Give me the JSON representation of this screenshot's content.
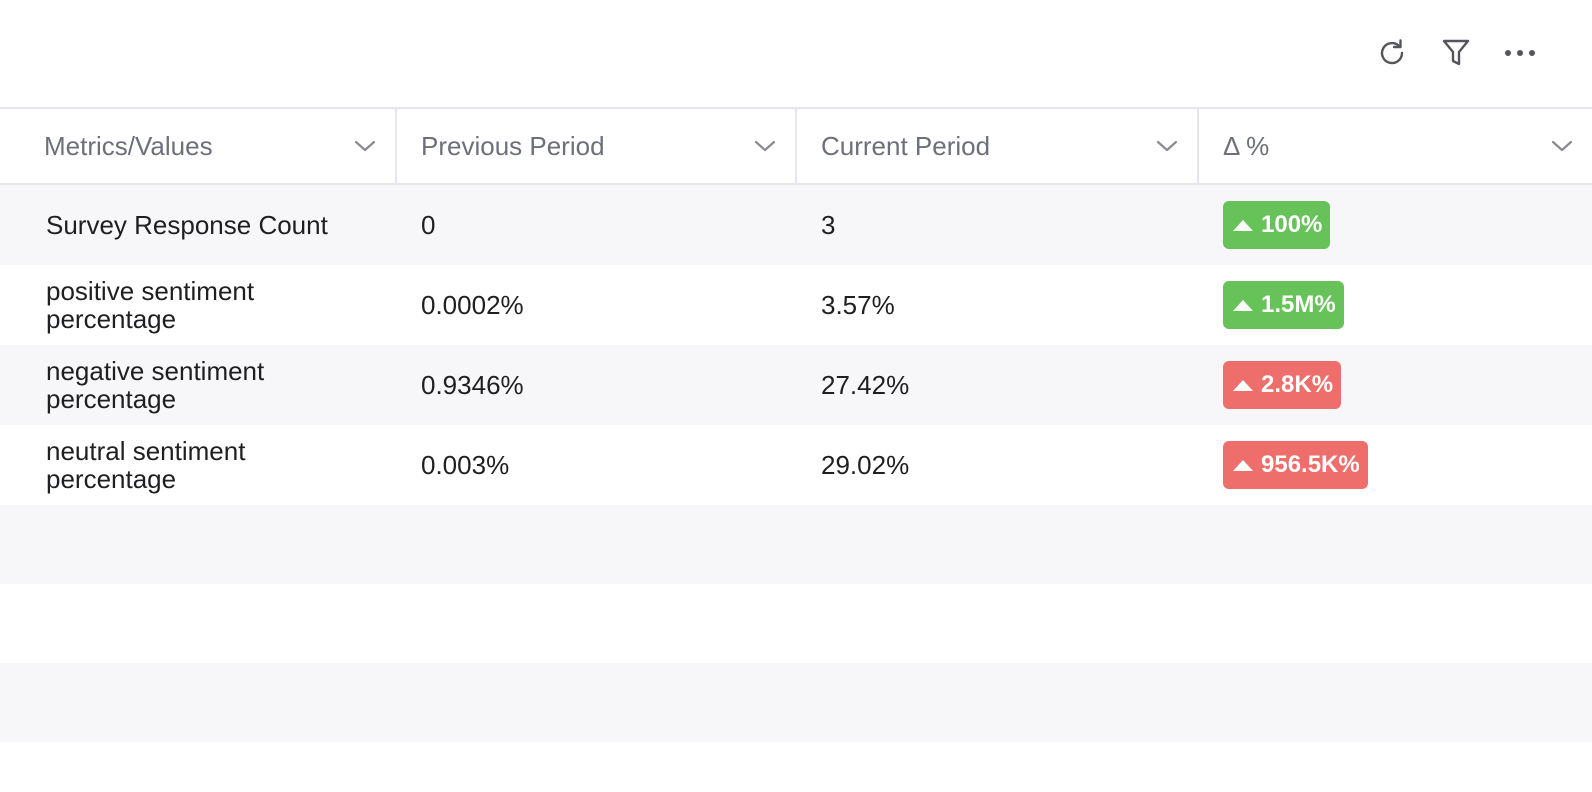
{
  "toolbar": {
    "icons": [
      "refresh-icon",
      "filter-icon",
      "more-icon"
    ]
  },
  "table": {
    "headers": [
      "Metrics/Values",
      "Previous Period",
      "Current Period",
      "Δ %"
    ],
    "rows": [
      {
        "metric": "Survey Response Count",
        "previous": "0",
        "current": "3",
        "delta": "100%",
        "delta_color": "#67c25a"
      },
      {
        "metric": "positive sentiment percentage",
        "previous": "0.0002%",
        "current": "3.57%",
        "delta": "1.5M%",
        "delta_color": "#67c25a"
      },
      {
        "metric": "negative sentiment percentage",
        "previous": "0.9346%",
        "current": "27.42%",
        "delta": "2.8K%",
        "delta_color": "#ee6e6b"
      },
      {
        "metric": "neutral sentiment percentage",
        "previous": "0.003%",
        "current": "29.02%",
        "delta": "956.5K%",
        "delta_color": "#ee6e6b"
      }
    ]
  },
  "colors": {
    "positive": "#67c25a",
    "negative": "#ee6e6b",
    "stripe": "#f7f7f9"
  }
}
